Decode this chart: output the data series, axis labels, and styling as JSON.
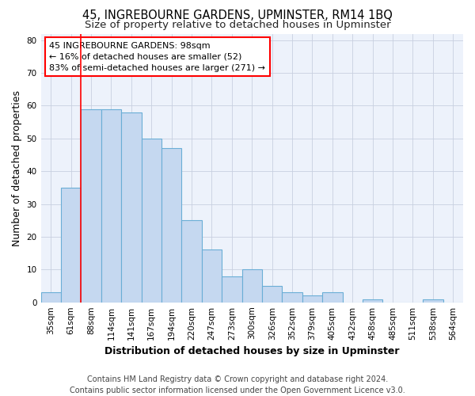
{
  "title": "45, INGREBOURNE GARDENS, UPMINSTER, RM14 1BQ",
  "subtitle": "Size of property relative to detached houses in Upminster",
  "xlabel": "Distribution of detached houses by size in Upminster",
  "ylabel": "Number of detached properties",
  "categories": [
    "35sqm",
    "61sqm",
    "88sqm",
    "114sqm",
    "141sqm",
    "167sqm",
    "194sqm",
    "220sqm",
    "247sqm",
    "273sqm",
    "300sqm",
    "326sqm",
    "352sqm",
    "379sqm",
    "405sqm",
    "432sqm",
    "458sqm",
    "485sqm",
    "511sqm",
    "538sqm",
    "564sqm"
  ],
  "values": [
    3,
    35,
    59,
    59,
    58,
    50,
    47,
    25,
    16,
    8,
    10,
    5,
    3,
    2,
    3,
    0,
    1,
    0,
    0,
    1,
    0
  ],
  "bar_color": "#c5d8f0",
  "bar_edge_color": "#6aaed6",
  "red_line_x": 1.5,
  "ylim": [
    0,
    82
  ],
  "yticks": [
    0,
    10,
    20,
    30,
    40,
    50,
    60,
    70,
    80
  ],
  "annotation_box_text": "45 INGREBOURNE GARDENS: 98sqm\n← 16% of detached houses are smaller (52)\n83% of semi-detached houses are larger (271) →",
  "footer_line1": "Contains HM Land Registry data © Crown copyright and database right 2024.",
  "footer_line2": "Contains public sector information licensed under the Open Government Licence v3.0.",
  "background_color": "#ffffff",
  "plot_bg_color": "#edf2fb",
  "grid_color": "#c8d0e0",
  "title_fontsize": 10.5,
  "subtitle_fontsize": 9.5,
  "axis_label_fontsize": 9,
  "tick_fontsize": 7.5,
  "annotation_fontsize": 8,
  "footer_fontsize": 7
}
